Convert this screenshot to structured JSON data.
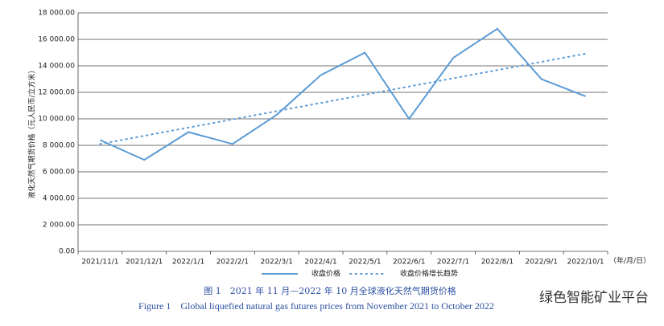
{
  "chart_data": {
    "type": "line",
    "categories": [
      "2021/11/1",
      "2021/12/1",
      "2022/1/1",
      "2022/2/1",
      "2022/3/1",
      "2022/4/1",
      "2022/5/1",
      "2022/6/1",
      "2022/7/1",
      "2022/8/1",
      "2022/9/1",
      "2022/10/1"
    ],
    "series": [
      {
        "name": "收盘价格",
        "color": "#5b9bd5",
        "style": "solid",
        "values": [
          8400,
          6900,
          9000,
          8100,
          10300,
          13300,
          15000,
          10000,
          14600,
          16800,
          13000,
          11700
        ]
      },
      {
        "name": "收盘价格增长趋势",
        "color": "#5b9bd5",
        "style": "dotted",
        "values": [
          8100,
          8720,
          9340,
          9960,
          10580,
          11200,
          11820,
          12440,
          13060,
          13680,
          14300,
          14920
        ]
      }
    ],
    "ylabel": "液化天然气期货价格（元人民币/立方米）",
    "xunit": "（年/月/日）",
    "ylim": [
      0,
      18000
    ],
    "yticks": [
      {
        "value": 0,
        "label": "0.00"
      },
      {
        "value": 2000,
        "label": "2 000.00"
      },
      {
        "value": 4000,
        "label": "4 000.00"
      },
      {
        "value": 6000,
        "label": "6 000.00"
      },
      {
        "value": 8000,
        "label": "8 000.00"
      },
      {
        "value": 10000,
        "label": "10 000.00"
      },
      {
        "value": 12000,
        "label": "12 000.00"
      },
      {
        "value": 14000,
        "label": "14 000.00"
      },
      {
        "value": 16000,
        "label": "16 000.00"
      },
      {
        "value": 18000,
        "label": "18 000.00"
      }
    ],
    "grid": true,
    "legend": "bottom",
    "caption_cn": "图 1　2021 年 11 月—2022 年 10 月全球液化天然气期货价格",
    "caption_en": "Figure 1　Global liquefied natural gas futures prices from November 2021 to October 2022",
    "watermark": "绿色智能矿业平台"
  }
}
